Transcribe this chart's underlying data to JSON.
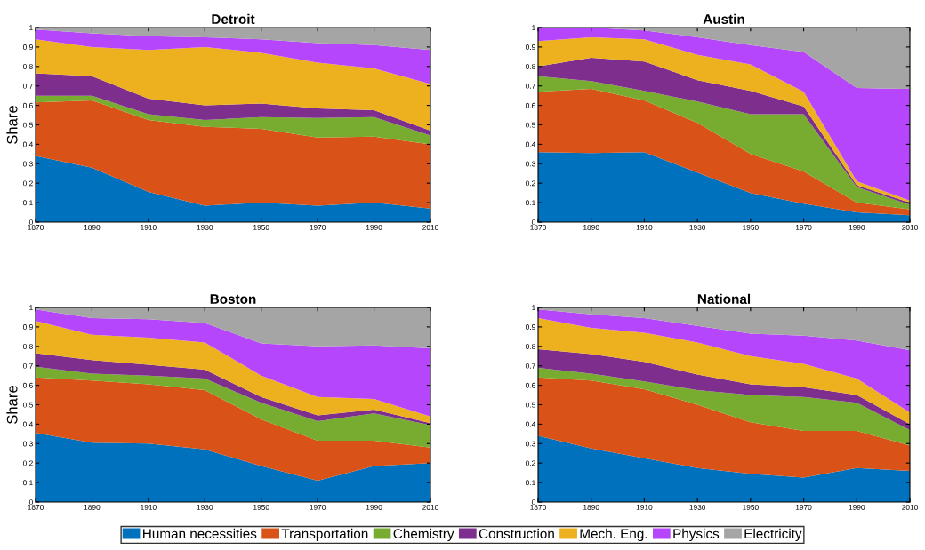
{
  "chart_data": [
    {
      "type": "area",
      "title": "Detroit",
      "ylabel": "Share",
      "stacked": true,
      "legend": "bottom",
      "x": [
        1870,
        1890,
        1910,
        1930,
        1950,
        1970,
        1990,
        2010
      ],
      "xlim": [
        1870,
        2010
      ],
      "xticks": [
        1870,
        1890,
        1910,
        1930,
        1950,
        1970,
        1990,
        2010
      ],
      "ylim": [
        0,
        1
      ],
      "yticks": [
        0,
        0.1,
        0.2,
        0.3,
        0.4,
        0.5,
        0.6,
        0.7,
        0.8,
        0.9,
        1
      ],
      "grid": false,
      "series": [
        {
          "name": "Human necessities",
          "color": "#0072bd",
          "values": [
            0.34,
            0.28,
            0.155,
            0.085,
            0.1,
            0.085,
            0.1,
            0.07
          ]
        },
        {
          "name": "Transportation",
          "color": "#d95319",
          "values": [
            0.275,
            0.345,
            0.37,
            0.405,
            0.38,
            0.35,
            0.34,
            0.33
          ]
        },
        {
          "name": "Chemistry",
          "color": "#77ac30",
          "values": [
            0.035,
            0.025,
            0.03,
            0.035,
            0.06,
            0.1,
            0.1,
            0.045
          ]
        },
        {
          "name": "Construction",
          "color": "#7e2f8e",
          "values": [
            0.115,
            0.1,
            0.08,
            0.075,
            0.07,
            0.05,
            0.035,
            0.025
          ]
        },
        {
          "name": "Mech. Eng.",
          "color": "#edb120",
          "values": [
            0.175,
            0.15,
            0.25,
            0.3,
            0.26,
            0.235,
            0.215,
            0.24
          ]
        },
        {
          "name": "Physics",
          "color": "#b646fc",
          "values": [
            0.05,
            0.07,
            0.07,
            0.05,
            0.07,
            0.1,
            0.12,
            0.175
          ]
        },
        {
          "name": "Electricity",
          "color": "#a5a5a5",
          "values": [
            0.01,
            0.03,
            0.045,
            0.05,
            0.06,
            0.08,
            0.09,
            0.115
          ]
        }
      ]
    },
    {
      "type": "area",
      "title": "Austin",
      "stacked": true,
      "x": [
        1870,
        1890,
        1910,
        1930,
        1950,
        1970,
        1990,
        2010
      ],
      "xlim": [
        1870,
        2010
      ],
      "xticks": [
        1870,
        1890,
        1910,
        1930,
        1950,
        1970,
        1990,
        2010
      ],
      "ylim": [
        0,
        1
      ],
      "yticks": [
        0,
        0.1,
        0.2,
        0.3,
        0.4,
        0.5,
        0.6,
        0.7,
        0.8,
        0.9,
        1
      ],
      "grid": false,
      "series": [
        {
          "color": "#0072bd",
          "values": [
            0.36,
            0.355,
            0.36,
            0.255,
            0.15,
            0.095,
            0.05,
            0.035
          ]
        },
        {
          "color": "#d95319",
          "values": [
            0.31,
            0.33,
            0.265,
            0.255,
            0.2,
            0.165,
            0.05,
            0.03
          ]
        },
        {
          "color": "#77ac30",
          "values": [
            0.08,
            0.04,
            0.05,
            0.11,
            0.205,
            0.295,
            0.08,
            0.025
          ]
        },
        {
          "color": "#7e2f8e",
          "values": [
            0.05,
            0.12,
            0.15,
            0.11,
            0.12,
            0.04,
            0.01,
            0.01
          ]
        },
        {
          "color": "#edb120",
          "values": [
            0.13,
            0.105,
            0.115,
            0.13,
            0.135,
            0.075,
            0.02,
            0.01
          ]
        },
        {
          "color": "#b646fc",
          "values": [
            0.07,
            0.05,
            0.045,
            0.09,
            0.1,
            0.205,
            0.48,
            0.575
          ]
        },
        {
          "color": "#a5a5a5",
          "values": [
            0,
            0,
            0.015,
            0.05,
            0.09,
            0.125,
            0.31,
            0.315
          ]
        }
      ]
    },
    {
      "type": "area",
      "title": "Boston",
      "ylabel": "Share",
      "stacked": true,
      "x": [
        1870,
        1890,
        1910,
        1930,
        1950,
        1970,
        1990,
        2010
      ],
      "xlim": [
        1870,
        2010
      ],
      "xticks": [
        1870,
        1890,
        1910,
        1930,
        1950,
        1970,
        1990,
        2010
      ],
      "ylim": [
        0,
        1
      ],
      "yticks": [
        0,
        0.1,
        0.2,
        0.3,
        0.4,
        0.5,
        0.6,
        0.7,
        0.8,
        0.9,
        1
      ],
      "grid": false,
      "series": [
        {
          "color": "#0072bd",
          "values": [
            0.355,
            0.305,
            0.3,
            0.27,
            0.185,
            0.11,
            0.185,
            0.2
          ]
        },
        {
          "color": "#d95319",
          "values": [
            0.285,
            0.32,
            0.305,
            0.305,
            0.24,
            0.205,
            0.13,
            0.08
          ]
        },
        {
          "color": "#77ac30",
          "values": [
            0.055,
            0.035,
            0.045,
            0.06,
            0.085,
            0.1,
            0.14,
            0.115
          ]
        },
        {
          "color": "#7e2f8e",
          "values": [
            0.07,
            0.07,
            0.055,
            0.045,
            0.03,
            0.03,
            0.02,
            0.01
          ]
        },
        {
          "color": "#edb120",
          "values": [
            0.165,
            0.13,
            0.14,
            0.14,
            0.11,
            0.095,
            0.055,
            0.035
          ]
        },
        {
          "color": "#b646fc",
          "values": [
            0.06,
            0.085,
            0.095,
            0.1,
            0.165,
            0.26,
            0.275,
            0.35
          ]
        },
        {
          "color": "#a5a5a5",
          "values": [
            0.01,
            0.055,
            0.06,
            0.08,
            0.185,
            0.2,
            0.195,
            0.21
          ]
        }
      ]
    },
    {
      "type": "area",
      "title": "National",
      "stacked": true,
      "x": [
        1870,
        1890,
        1910,
        1930,
        1950,
        1970,
        1990,
        2010
      ],
      "xlim": [
        1870,
        2010
      ],
      "xticks": [
        1870,
        1890,
        1910,
        1930,
        1950,
        1970,
        1990,
        2010
      ],
      "ylim": [
        0,
        1
      ],
      "yticks": [
        0,
        0.1,
        0.2,
        0.3,
        0.4,
        0.5,
        0.6,
        0.7,
        0.8,
        0.9,
        1
      ],
      "grid": false,
      "series": [
        {
          "color": "#0072bd",
          "values": [
            0.34,
            0.275,
            0.225,
            0.175,
            0.145,
            0.125,
            0.175,
            0.16
          ]
        },
        {
          "color": "#d95319",
          "values": [
            0.3,
            0.35,
            0.355,
            0.325,
            0.265,
            0.24,
            0.19,
            0.13
          ]
        },
        {
          "color": "#77ac30",
          "values": [
            0.05,
            0.035,
            0.04,
            0.075,
            0.14,
            0.175,
            0.145,
            0.08
          ]
        },
        {
          "color": "#7e2f8e",
          "values": [
            0.095,
            0.1,
            0.1,
            0.08,
            0.055,
            0.05,
            0.04,
            0.03
          ]
        },
        {
          "color": "#edb120",
          "values": [
            0.16,
            0.135,
            0.15,
            0.165,
            0.145,
            0.12,
            0.085,
            0.06
          ]
        },
        {
          "color": "#b646fc",
          "values": [
            0.045,
            0.07,
            0.075,
            0.085,
            0.115,
            0.145,
            0.195,
            0.32
          ]
        },
        {
          "color": "#a5a5a5",
          "values": [
            0.01,
            0.035,
            0.055,
            0.095,
            0.135,
            0.145,
            0.17,
            0.22
          ]
        }
      ]
    }
  ]
}
